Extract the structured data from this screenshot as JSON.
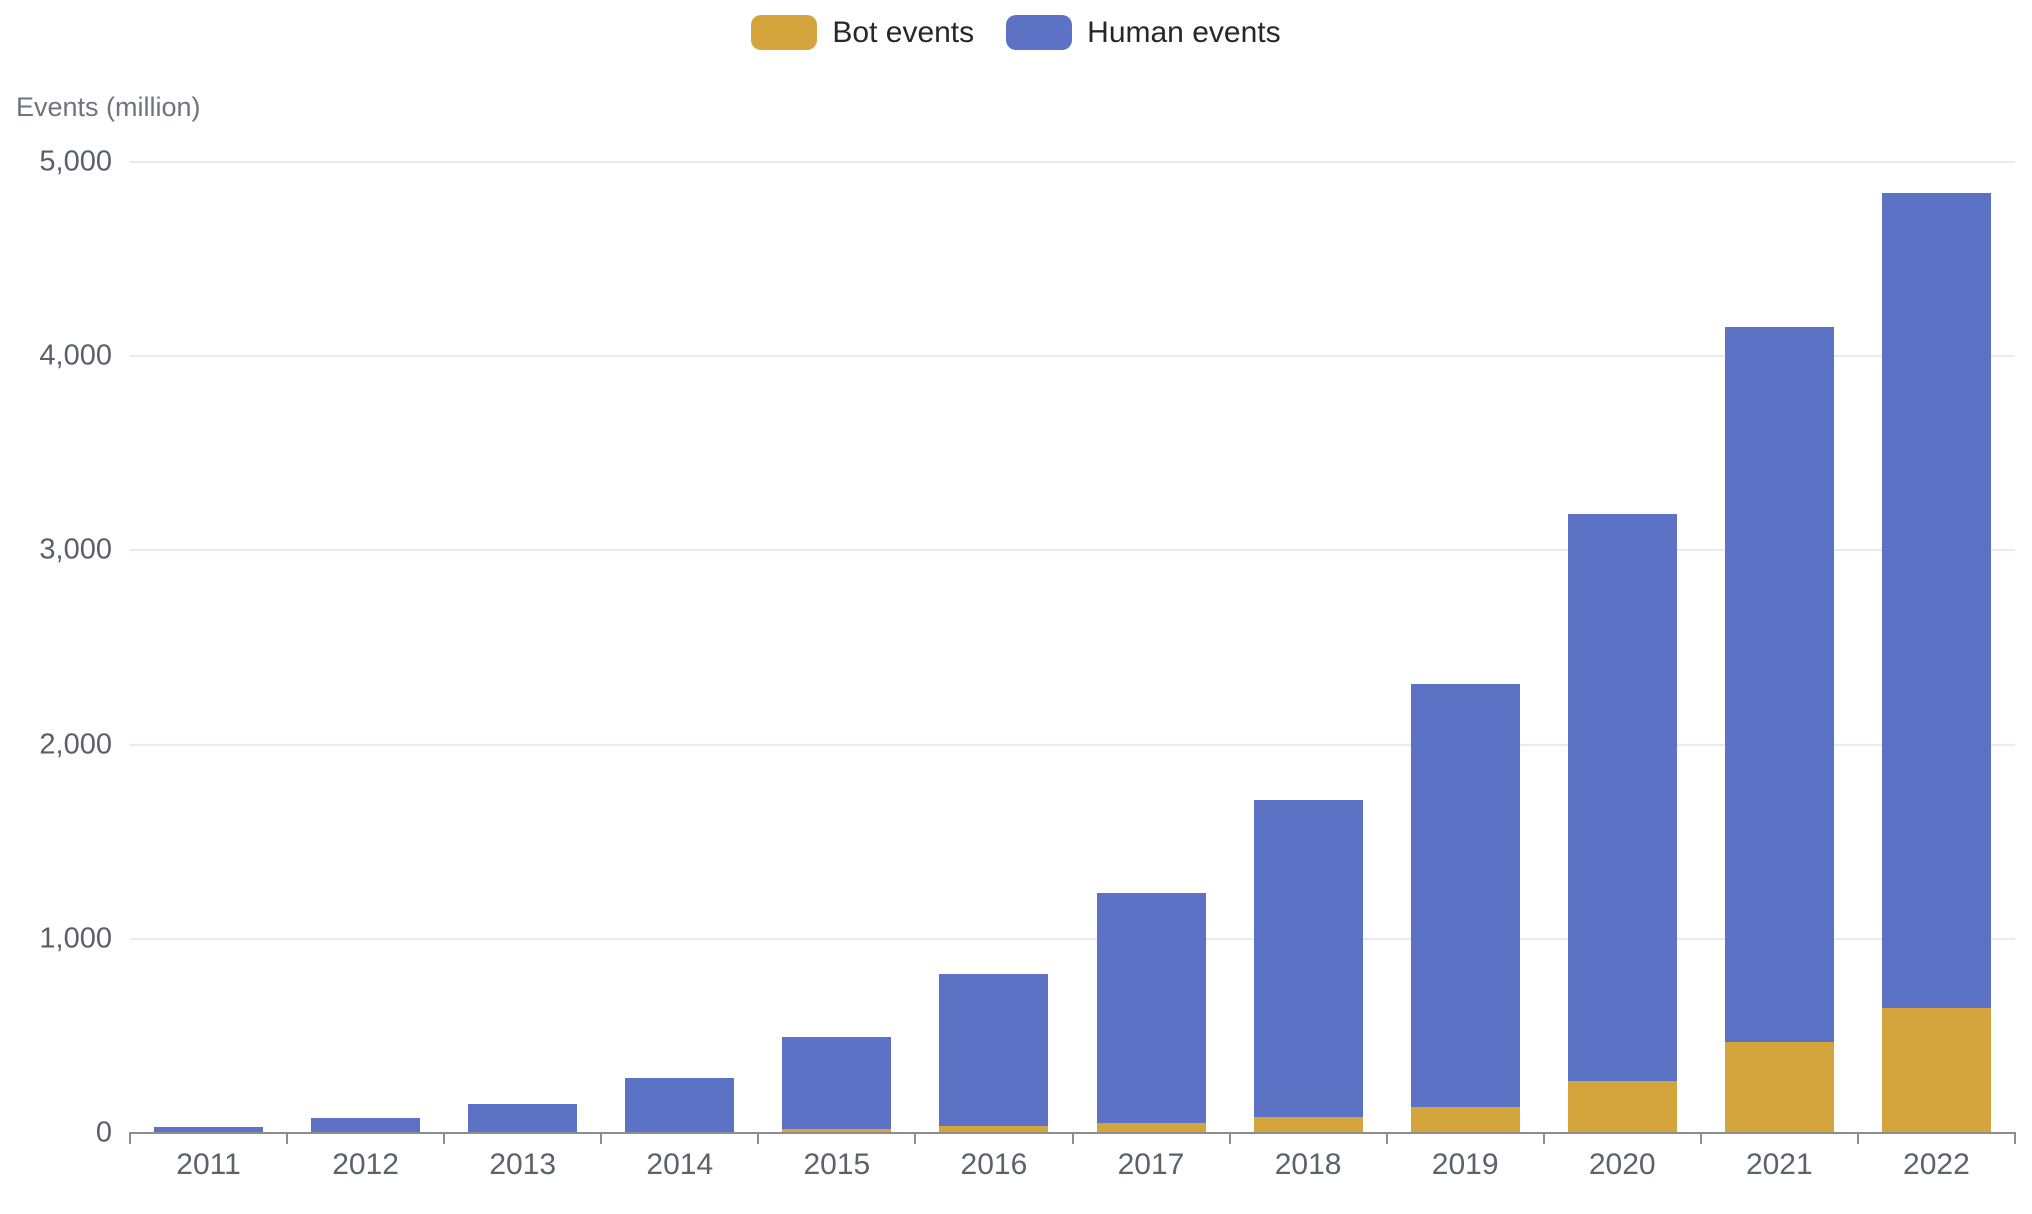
{
  "chart_data": {
    "type": "bar",
    "stacked": true,
    "title": "",
    "xlabel": "",
    "ylabel": "Events (million)",
    "categories": [
      "2011",
      "2012",
      "2013",
      "2014",
      "2015",
      "2016",
      "2017",
      "2018",
      "2019",
      "2020",
      "2021",
      "2022"
    ],
    "series": [
      {
        "name": "Bot events",
        "color": "#D3A53C",
        "values": [
          0,
          0,
          0,
          5,
          20,
          35,
          50,
          80,
          135,
          270,
          470,
          645
        ]
      },
      {
        "name": "Human events",
        "color": "#5B72C5",
        "values": [
          30,
          75,
          150,
          280,
          475,
          785,
          1185,
          1635,
          2175,
          2920,
          3680,
          4195
        ]
      }
    ],
    "totals": [
      30,
      75,
      150,
      285,
      495,
      820,
      1235,
      1715,
      2310,
      3190,
      4150,
      4840
    ],
    "ylim": [
      0,
      5000
    ],
    "ytick_step": 1000,
    "ytick_values": [
      5000,
      4000,
      3000,
      2000,
      1000,
      0
    ],
    "ytick_labels": [
      "5,000",
      "4,000",
      "3,000",
      "2,000",
      "1,000",
      "0"
    ],
    "grid": true,
    "legend_position": "top-center"
  },
  "colors": {
    "bot": "#D3A53C",
    "human": "#5B72C5",
    "gridline": "#E8EBF5",
    "axis_line": "#8D8D8D",
    "axis_text": "#5C616C",
    "background": "#FFFFFF"
  }
}
